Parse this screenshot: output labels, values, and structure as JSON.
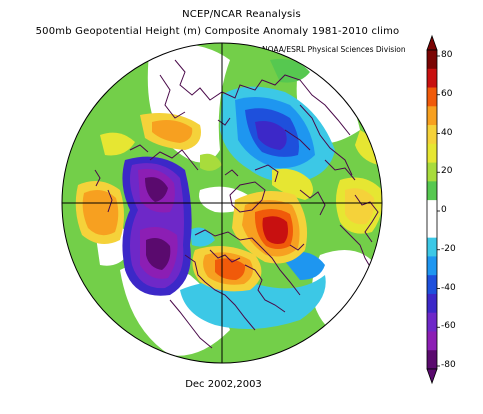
{
  "header": {
    "title": "NCEP/NCAR Reanalysis",
    "subtitle": "500mb Geopotential Height (m) Composite Anomaly 1981-2010 climo",
    "credit": "NOAA/ESRL Physical Sciences Division"
  },
  "footer": {
    "date": "Dec 2002,2003"
  },
  "colorbar": {
    "ticks": [
      "80",
      "60",
      "40",
      "20",
      "0",
      "-20",
      "-40",
      "-60",
      "-80"
    ],
    "colors": [
      "#7a0403",
      "#c81010",
      "#f05a0a",
      "#f7a020",
      "#f5d23a",
      "#e6e632",
      "#a8dc3c",
      "#56c850",
      "#ffffff",
      "#ffffff",
      "#3cc8e6",
      "#1e96f0",
      "#1e50dc",
      "#3c28c8",
      "#6e28c8",
      "#8c1eb4",
      "#5a0a6e"
    ]
  },
  "map": {
    "projection": "north-polar-stereographic",
    "features": [
      "anomaly-field",
      "coastlines",
      "meridian-lines"
    ]
  }
}
